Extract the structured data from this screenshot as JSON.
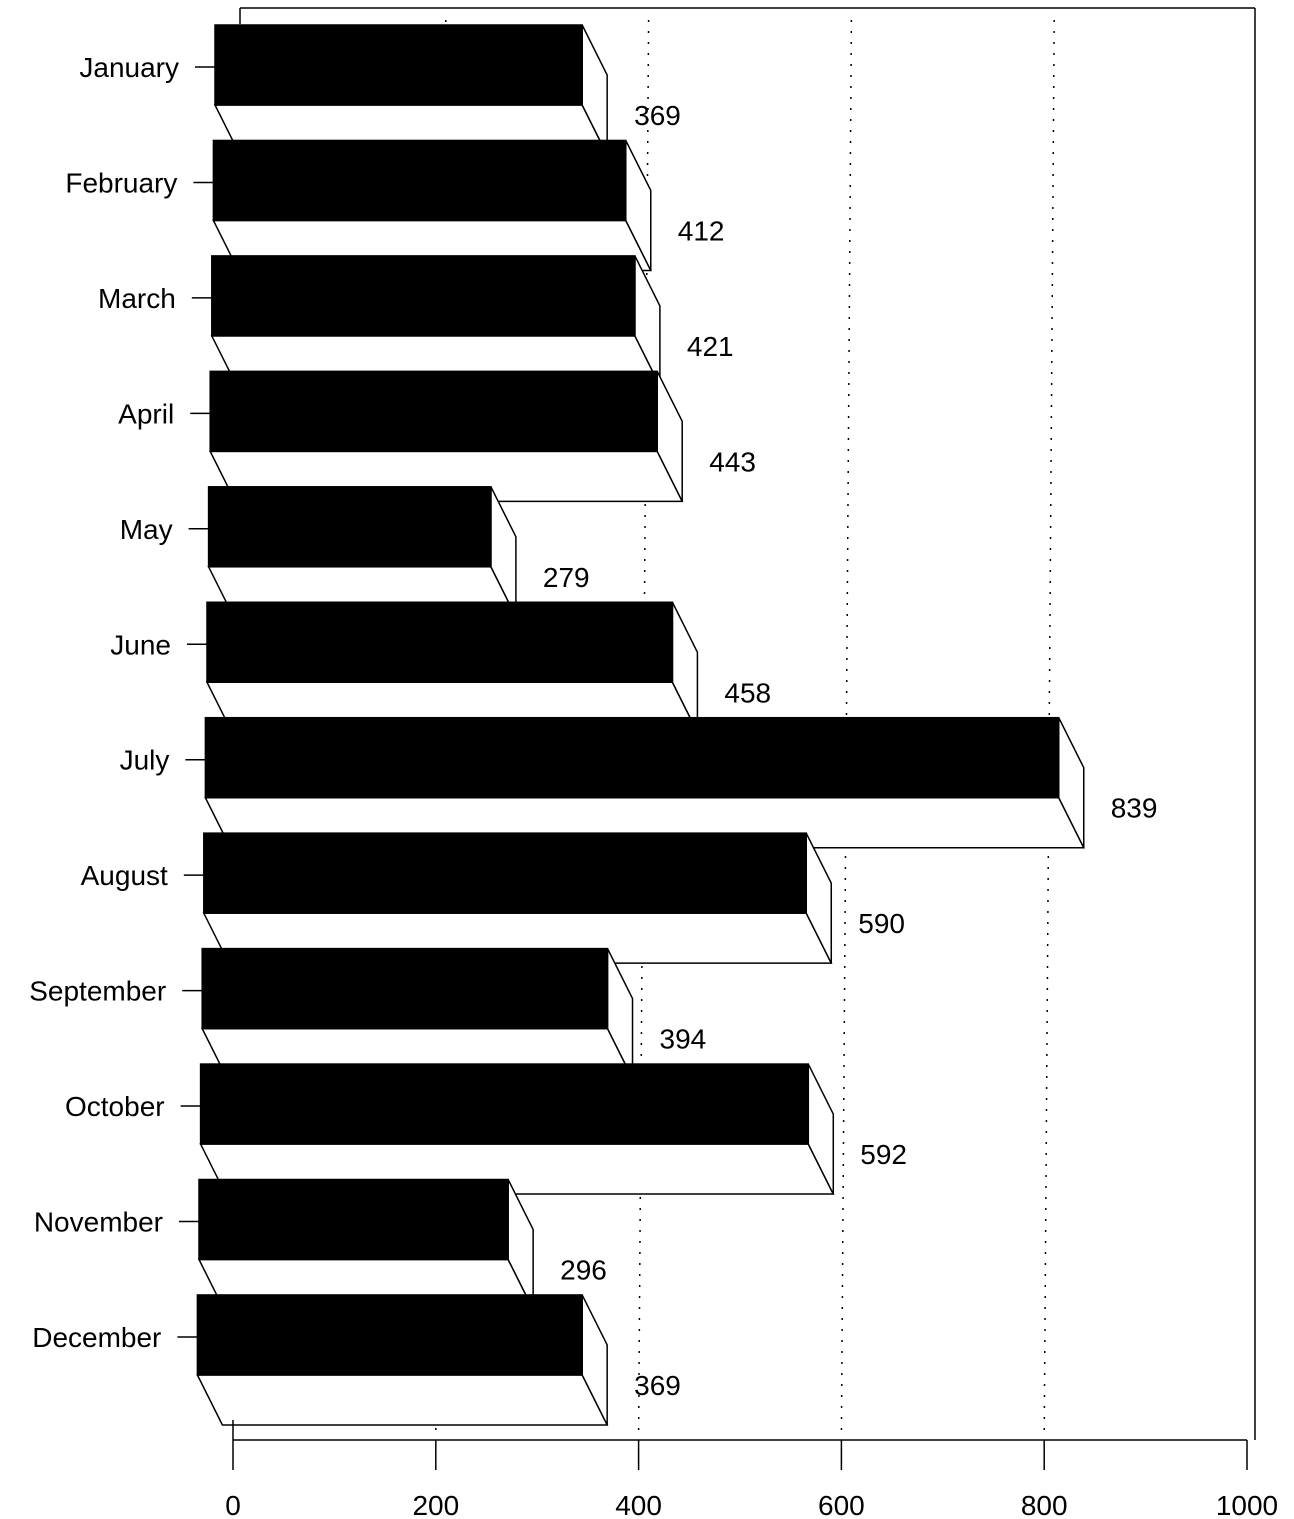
{
  "chart_data": {
    "type": "bar",
    "orientation": "horizontal",
    "style": "3d",
    "categories": [
      "January",
      "February",
      "March",
      "April",
      "May",
      "June",
      "July",
      "August",
      "September",
      "October",
      "November",
      "December"
    ],
    "values": [
      369,
      412,
      421,
      443,
      279,
      458,
      839,
      590,
      394,
      592,
      296,
      369
    ],
    "data_labels": [
      "369",
      "412",
      "421",
      "443",
      "279",
      "458",
      "839",
      "590",
      "394",
      "592",
      "296",
      "369"
    ],
    "x_ticks": [
      "0",
      "200",
      "400",
      "600",
      "800",
      "1000"
    ],
    "xlim": [
      0,
      1000
    ],
    "title": "",
    "xlabel": "",
    "ylabel": "",
    "grid": "vertical dotted",
    "legend": "none",
    "colors": {
      "bar_front": "#000000",
      "bar_side": "#ffffff",
      "bar_edge": "#000000",
      "grid": "#000000"
    }
  }
}
